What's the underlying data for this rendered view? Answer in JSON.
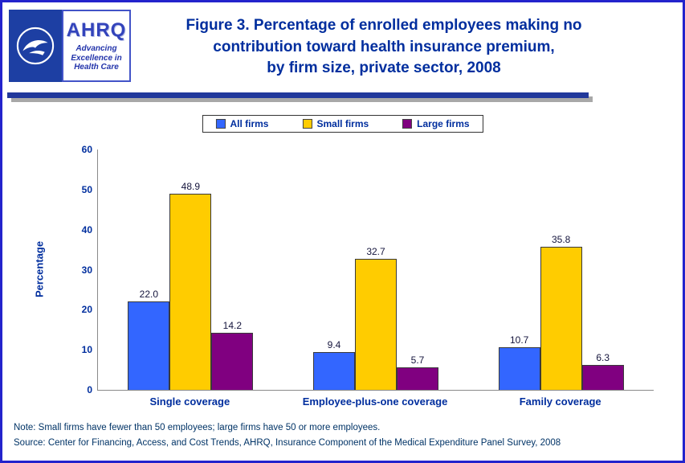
{
  "header": {
    "title_lines": [
      "Figure 3. Percentage of enrolled employees making no",
      "contribution toward health insurance premium,",
      "by firm size, private sector, 2008"
    ],
    "logo": {
      "ahrq_acronym": "AHRQ",
      "ahrq_tagline": "Advancing Excellence in Health Care"
    }
  },
  "chart_data": {
    "type": "bar",
    "categories": [
      "Single coverage",
      "Employee-plus-one coverage",
      "Family coverage"
    ],
    "series": [
      {
        "name": "All firms",
        "color": "#3366FF",
        "values": [
          22.0,
          9.4,
          10.7
        ]
      },
      {
        "name": "Small firms",
        "color": "#FFCC00",
        "values": [
          48.9,
          32.7,
          35.8
        ]
      },
      {
        "name": "Large firms",
        "color": "#800080",
        "values": [
          14.2,
          5.7,
          6.3
        ]
      }
    ],
    "ylabel": "Percentage",
    "xlabel": "",
    "ylim": [
      0,
      60
    ],
    "yticks": [
      0,
      10,
      20,
      30,
      40,
      50,
      60
    ],
    "grid": false,
    "legend_position": "top",
    "value_labels": "one_decimal"
  },
  "footnotes": {
    "note": "Note: Small firms have fewer than 50 employees; large firms have 50 or more employees.",
    "source": "Source: Center for Financing, Access, and Cost Trends, AHRQ, Insurance Component of the Medical Expenditure Panel Survey, 2008"
  }
}
